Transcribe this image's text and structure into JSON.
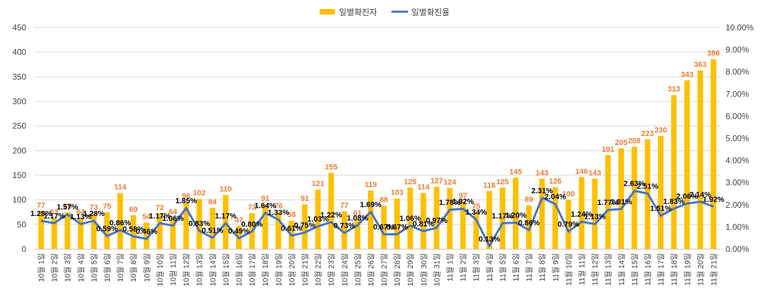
{
  "chart_data": {
    "type": "bar+line",
    "colors": {
      "bar": "#FFC000",
      "line": "#4472C4",
      "bar_label": "#ED7D31",
      "line_label": "#000000",
      "grid": "#D9D9D9",
      "axis_text": "#404040"
    },
    "legend": [
      {
        "name": "일별확진자",
        "symbol": "bar"
      },
      {
        "name": "일별확진율",
        "symbol": "line"
      }
    ],
    "legend_position": "top-center",
    "y_left": {
      "min": 0,
      "max": 450,
      "step": 50,
      "ticks": [
        "0",
        "50",
        "100",
        "150",
        "200",
        "250",
        "300",
        "350",
        "400",
        "450"
      ]
    },
    "y_right": {
      "min": 0,
      "max": 10,
      "step": 1,
      "ticks": [
        "0.00%",
        "1.00%",
        "2.00%",
        "3.00%",
        "4.00%",
        "5.00%",
        "6.00%",
        "7.00%",
        "8.00%",
        "9.00%",
        "10.00%"
      ]
    },
    "grid": true,
    "categories": [
      "10월 1일",
      "10월 2일",
      "10월 3일",
      "10월 4일",
      "10월 5일",
      "10월 6일",
      "10월 7일",
      "10월 8일",
      "10월 9일",
      "10월 10일",
      "10월 11일",
      "10월 12일",
      "10월 13일",
      "10월 14일",
      "10월 15일",
      "10월 16일",
      "10월 17일",
      "10월 18일",
      "10월 19일",
      "10월 20일",
      "10월 21일",
      "10월 22일",
      "10월 23일",
      "10월 24일",
      "10월 25일",
      "10월 26일",
      "10월 27일",
      "10월 28일",
      "10월 29일",
      "10월 30일",
      "10월 31일",
      "11월 1일",
      "11월 2일",
      "11월 3일",
      "11월 4일",
      "11월 5일",
      "11월 6일",
      "11월 7일",
      "11월 8일",
      "11월 9일",
      "11월 10일",
      "11월 11일",
      "11월 12일",
      "11월 13일",
      "11월 14일",
      "11월 15일",
      "11월 16일",
      "11월 17일",
      "11월 18일",
      "11월 19일",
      "11월 20일",
      "11월 21일"
    ],
    "series": [
      {
        "name": "일별확진자",
        "kind": "bar",
        "axis": "left",
        "values": [
          77,
          63,
          75,
          64,
          73,
          75,
          114,
          69,
          54,
          72,
          64,
          96,
          102,
          84,
          110,
          47,
          73,
          91,
          76,
          58,
          91,
          121,
          155,
          77,
          61,
          119,
          88,
          103,
          125,
          114,
          127,
          124,
          97,
          75,
          118,
          125,
          145,
          89,
          143,
          126,
          100,
          146,
          143,
          191,
          205,
          208,
          223,
          230,
          313,
          343,
          363,
          386
        ],
        "labels": [
          "77",
          "63",
          "75",
          "64",
          "73",
          "75",
          "114",
          "69",
          "54",
          "72",
          "64",
          "96",
          "102",
          "84",
          "110",
          "47",
          "73",
          "91",
          "76",
          "58",
          "91",
          "121",
          "155",
          "77",
          "61",
          "119",
          "88",
          "103",
          "125",
          "114",
          "127",
          "124",
          "97",
          "75",
          "118",
          "125",
          "145",
          "89",
          "143",
          "126",
          "100",
          "146",
          "143",
          "191",
          "205",
          "208",
          "223",
          "230",
          "313",
          "343",
          "363",
          "386"
        ]
      },
      {
        "name": "일별확진율",
        "kind": "line",
        "axis": "right",
        "values": [
          1.28,
          1.17,
          1.57,
          1.13,
          1.28,
          0.59,
          0.86,
          0.58,
          0.46,
          1.17,
          1.06,
          1.85,
          0.83,
          0.51,
          1.17,
          0.49,
          0.8,
          1.64,
          1.33,
          0.61,
          0.75,
          1.03,
          1.22,
          0.73,
          1.08,
          1.69,
          0.67,
          0.67,
          1.06,
          0.81,
          0.97,
          1.78,
          1.82,
          1.34,
          0.13,
          1.17,
          1.2,
          0.86,
          2.31,
          2.04,
          0.79,
          1.24,
          1.13,
          1.77,
          1.81,
          2.63,
          2.51,
          1.51,
          1.83,
          2.06,
          2.14,
          1.92
        ],
        "labels": [
          "1.28%",
          "1.17%",
          "1.57%",
          "1.13%",
          "1.28%",
          "0.59%",
          "0.86%",
          "0.58%",
          "0.46%",
          "1.17%",
          "1.06%",
          "1.85%",
          "0.83%",
          "0.51%",
          "1.17%",
          "0.49%",
          "0.80%",
          "1.64%",
          "1.33%",
          "0.61%",
          "0.75%",
          "1.03%",
          "1.22%",
          "0.73%",
          "1.08%",
          "1.69%",
          "0.67%",
          "0.67%",
          "1.06%",
          "0.81%",
          "0.97%",
          "1.78%",
          "1.82%",
          "1.34%",
          "0.13%",
          "1.17%",
          "1.20%",
          "0.86%",
          "2.31%",
          "2.04%",
          "0.79%",
          "1.24%",
          "1.13%",
          "1.77%",
          "1.81%",
          "2.63%",
          "2.51%",
          "1.51%",
          "1.83%",
          "2.06%",
          "2.14%",
          "1.92%"
        ]
      }
    ]
  }
}
